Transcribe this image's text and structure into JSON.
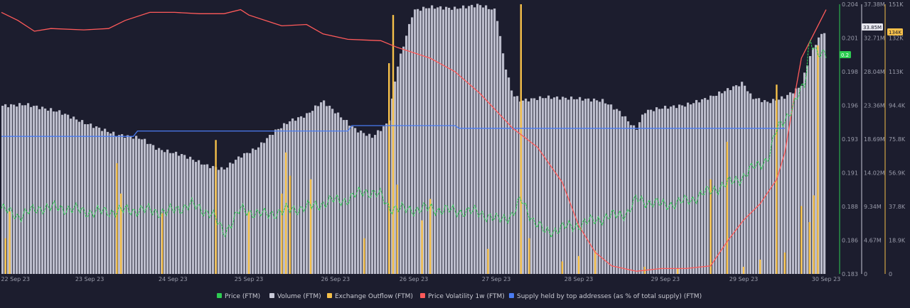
{
  "chart_data": {
    "type": "line",
    "title": "",
    "x_ticks": [
      "22 Sep 23",
      "23 Sep 23",
      "24 Sep 23",
      "25 Sep 23",
      "26 Sep 23",
      "26 Sep 23",
      "27 Sep 23",
      "28 Sep 23",
      "29 Sep 23",
      "29 Sep 23",
      "30 Sep 23"
    ],
    "axes": {
      "price": {
        "ticks": [
          "0.204",
          "0.201",
          "0.198",
          "0.196",
          "0.193",
          "0.191",
          "0.188",
          "0.186",
          "0.183"
        ],
        "ylim": [
          0.183,
          0.204
        ],
        "color": "#2ecc52"
      },
      "volume": {
        "ticks": [
          "37.38M",
          "32.71M",
          "28.04M",
          "23.36M",
          "18.69M",
          "14.02M",
          "9.34M",
          "4.67M",
          "0"
        ],
        "ylim": [
          0,
          37380000
        ],
        "color": "#c8c9d8"
      },
      "outflow": {
        "ticks": [
          "151K",
          "132K",
          "113K",
          "94.4K",
          "75.8K",
          "56.9K",
          "37.8K",
          "18.9K",
          "0"
        ],
        "ylim": [
          0,
          151000
        ],
        "color": "#f5c04a"
      }
    },
    "badges": [
      {
        "axis": "price",
        "label": "0.2",
        "color": "#2ecc52"
      },
      {
        "axis": "volume",
        "label": "33.85M",
        "color": "#e8e8f0"
      },
      {
        "axis": "outflow",
        "label": "134K",
        "color": "#f5c04a"
      }
    ],
    "series": [
      {
        "name": "Price (FTM)",
        "color": "#2ecc52",
        "points": [
          [
            0,
            0.1881
          ],
          [
            0.02,
            0.1875
          ],
          [
            0.05,
            0.1882
          ],
          [
            0.08,
            0.1881
          ],
          [
            0.11,
            0.1878
          ],
          [
            0.14,
            0.1879
          ],
          [
            0.17,
            0.188
          ],
          [
            0.2,
            0.1878
          ],
          [
            0.23,
            0.1884
          ],
          [
            0.255,
            0.1877
          ],
          [
            0.27,
            0.1862
          ],
          [
            0.29,
            0.188
          ],
          [
            0.32,
            0.1876
          ],
          [
            0.35,
            0.188
          ],
          [
            0.38,
            0.1883
          ],
          [
            0.4,
            0.1887
          ],
          [
            0.42,
            0.1888
          ],
          [
            0.44,
            0.1895
          ],
          [
            0.46,
            0.1891
          ],
          [
            0.47,
            0.1882
          ],
          [
            0.49,
            0.188
          ],
          [
            0.52,
            0.1881
          ],
          [
            0.55,
            0.1879
          ],
          [
            0.58,
            0.1878
          ],
          [
            0.6,
            0.1872
          ],
          [
            0.62,
            0.1876
          ],
          [
            0.63,
            0.1888
          ],
          [
            0.645,
            0.1872
          ],
          [
            0.66,
            0.1862
          ],
          [
            0.68,
            0.1866
          ],
          [
            0.7,
            0.1868
          ],
          [
            0.72,
            0.1872
          ],
          [
            0.74,
            0.1875
          ],
          [
            0.76,
            0.1878
          ],
          [
            0.77,
            0.1888
          ],
          [
            0.8,
            0.1884
          ],
          [
            0.82,
            0.1885
          ],
          [
            0.84,
            0.1889
          ],
          [
            0.86,
            0.1895
          ],
          [
            0.88,
            0.19
          ],
          [
            0.9,
            0.1906
          ],
          [
            0.91,
            0.1912
          ],
          [
            0.93,
            0.192
          ],
          [
            0.94,
            0.1942
          ],
          [
            0.96,
            0.196
          ],
          [
            0.975,
            0.198
          ],
          [
            0.98,
            0.2015
          ],
          [
            0.99,
            0.2
          ],
          [
            1,
            0.2
          ]
        ]
      },
      {
        "name": "Volume (FTM)",
        "color": "#c8c9d8",
        "points": [
          [
            0,
            23.3
          ],
          [
            0.03,
            23.5
          ],
          [
            0.07,
            22.5
          ],
          [
            0.1,
            21.0
          ],
          [
            0.14,
            19.3
          ],
          [
            0.17,
            18.8
          ],
          [
            0.19,
            17.3
          ],
          [
            0.22,
            16.5
          ],
          [
            0.25,
            15.0
          ],
          [
            0.27,
            14.5
          ],
          [
            0.29,
            16.3
          ],
          [
            0.31,
            17.4
          ],
          [
            0.33,
            19.6
          ],
          [
            0.35,
            21.2
          ],
          [
            0.37,
            22.0
          ],
          [
            0.39,
            24.0
          ],
          [
            0.41,
            22.0
          ],
          [
            0.43,
            20.0
          ],
          [
            0.45,
            19.0
          ],
          [
            0.47,
            21.0
          ],
          [
            0.48,
            28.5
          ],
          [
            0.5,
            36.5
          ],
          [
            0.52,
            37.0
          ],
          [
            0.55,
            36.8
          ],
          [
            0.58,
            37.3
          ],
          [
            0.6,
            36.5
          ],
          [
            0.61,
            29.5
          ],
          [
            0.62,
            25.0
          ],
          [
            0.63,
            24.0
          ],
          [
            0.66,
            24.5
          ],
          [
            0.7,
            24.3
          ],
          [
            0.73,
            24.0
          ],
          [
            0.75,
            22.5
          ],
          [
            0.77,
            20.0
          ],
          [
            0.78,
            22.5
          ],
          [
            0.8,
            23.0
          ],
          [
            0.83,
            23.4
          ],
          [
            0.86,
            24.5
          ],
          [
            0.88,
            25.5
          ],
          [
            0.9,
            26.5
          ],
          [
            0.91,
            24.5
          ],
          [
            0.93,
            23.8
          ],
          [
            0.95,
            24.5
          ],
          [
            0.97,
            26.0
          ],
          [
            0.98,
            30.0
          ],
          [
            0.99,
            32.5
          ],
          [
            1,
            33.85
          ]
        ]
      },
      {
        "name": "Exchange Outflow (FTM)",
        "color": "#f5c04a",
        "spikes": [
          [
            0.005,
            20
          ],
          [
            0.01,
            35
          ],
          [
            0.14,
            62
          ],
          [
            0.145,
            45
          ],
          [
            0.195,
            34
          ],
          [
            0.26,
            75
          ],
          [
            0.3,
            35
          ],
          [
            0.34,
            45
          ],
          [
            0.345,
            68
          ],
          [
            0.35,
            55
          ],
          [
            0.375,
            53
          ],
          [
            0.44,
            20
          ],
          [
            0.47,
            118
          ],
          [
            0.475,
            145
          ],
          [
            0.48,
            50
          ],
          [
            0.51,
            30
          ],
          [
            0.52,
            42
          ],
          [
            0.59,
            14
          ],
          [
            0.63,
            151
          ],
          [
            0.64,
            20
          ],
          [
            0.68,
            7
          ],
          [
            0.7,
            10
          ],
          [
            0.72,
            13
          ],
          [
            0.78,
            4
          ],
          [
            0.82,
            3
          ],
          [
            0.86,
            53
          ],
          [
            0.88,
            74
          ],
          [
            0.9,
            4
          ],
          [
            0.92,
            8
          ],
          [
            0.94,
            106
          ],
          [
            0.95,
            12
          ],
          [
            0.97,
            38
          ],
          [
            0.98,
            29
          ],
          [
            0.985,
            44
          ],
          [
            0.99,
            128
          ]
        ]
      },
      {
        "name": "Price Volatility 1w (FTM)",
        "color": "#ff5a5a",
        "points": [
          [
            0,
            0.03
          ],
          [
            0.02,
            0.06
          ],
          [
            0.04,
            0.1
          ],
          [
            0.06,
            0.09
          ],
          [
            0.1,
            0.095
          ],
          [
            0.13,
            0.09
          ],
          [
            0.15,
            0.06
          ],
          [
            0.18,
            0.03
          ],
          [
            0.21,
            0.03
          ],
          [
            0.24,
            0.035
          ],
          [
            0.27,
            0.035
          ],
          [
            0.29,
            0.02
          ],
          [
            0.3,
            0.04
          ],
          [
            0.33,
            0.07
          ],
          [
            0.34,
            0.08
          ],
          [
            0.37,
            0.075
          ],
          [
            0.39,
            0.11
          ],
          [
            0.42,
            0.13
          ],
          [
            0.46,
            0.135
          ],
          [
            0.48,
            0.16
          ],
          [
            0.52,
            0.2
          ],
          [
            0.55,
            0.25
          ],
          [
            0.58,
            0.33
          ],
          [
            0.62,
            0.46
          ],
          [
            0.65,
            0.53
          ],
          [
            0.68,
            0.66
          ],
          [
            0.7,
            0.82
          ],
          [
            0.72,
            0.92
          ],
          [
            0.74,
            0.97
          ],
          [
            0.77,
            0.99
          ],
          [
            0.8,
            0.98
          ],
          [
            0.83,
            0.98
          ],
          [
            0.86,
            0.97
          ],
          [
            0.88,
            0.88
          ],
          [
            0.9,
            0.8
          ],
          [
            0.92,
            0.74
          ],
          [
            0.94,
            0.65
          ],
          [
            0.95,
            0.55
          ],
          [
            0.96,
            0.37
          ],
          [
            0.97,
            0.2
          ],
          [
            1,
            0.02
          ]
        ]
      },
      {
        "name": "Supply held by top addresses (as % of total supply) (FTM)",
        "color": "#4a7cf2",
        "points": [
          [
            0,
            0.49
          ],
          [
            0.16,
            0.49
          ],
          [
            0.165,
            0.47
          ],
          [
            0.42,
            0.47
          ],
          [
            0.425,
            0.45
          ],
          [
            0.55,
            0.45
          ],
          [
            0.555,
            0.46
          ],
          [
            0.95,
            0.46
          ]
        ]
      }
    ]
  }
}
